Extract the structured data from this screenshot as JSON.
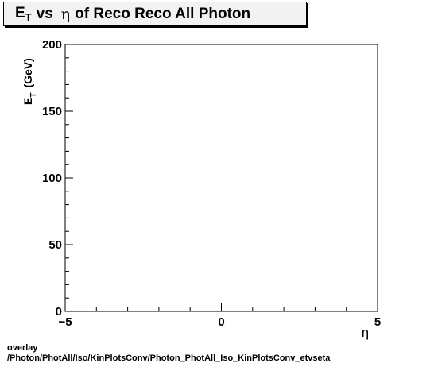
{
  "title": {
    "et_main": "E",
    "et_sub": "T",
    "vs": "vs",
    "eta": "η",
    "rest": "of Reco Reco All Photon"
  },
  "chart_data": {
    "type": "scatter",
    "x": [],
    "y": [],
    "xlabel": "η",
    "ylabel": {
      "main": "E",
      "sub": "T",
      "unit": "(GeV)"
    },
    "xlim": [
      -5,
      5
    ],
    "ylim": [
      0,
      200
    ],
    "x_ticks": [
      -5,
      0,
      5
    ],
    "y_ticks": [
      0,
      50,
      100,
      150,
      200
    ],
    "x_tick_labels": [
      "−5",
      "0",
      "5"
    ],
    "y_tick_labels": [
      "0",
      "50",
      "100",
      "150",
      "200"
    ],
    "grid": false
  },
  "footer": {
    "line1": "overlay",
    "line2": "/Photon/PhotAll/Iso/KinPlotsConv/Photon_PhotAll_Iso_KinPlotsConv_etvseta"
  }
}
